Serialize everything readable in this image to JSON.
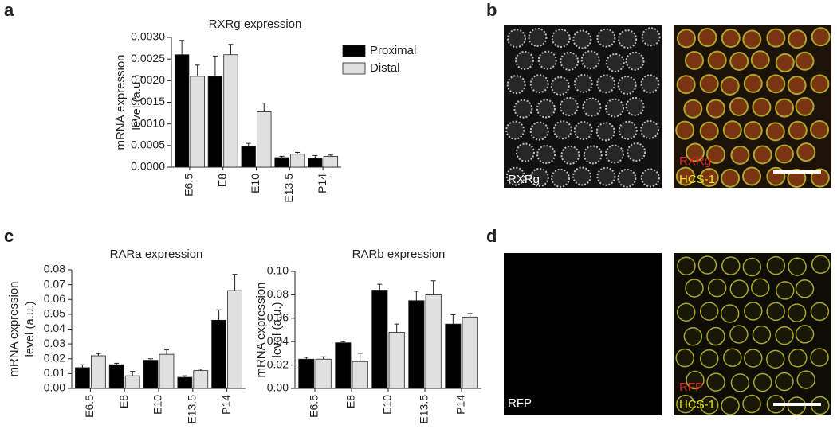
{
  "chart_data": [
    {
      "type": "bar",
      "title": "RXRg expression",
      "ylabel": [
        "mRNA expression",
        "level (a.u.)"
      ],
      "categories": [
        "E6.5",
        "E8",
        "E10",
        "E13.5",
        "P14"
      ],
      "series": [
        {
          "name": "Proximal",
          "color": "#000000",
          "values": [
            0.0026,
            0.0021,
            0.00048,
            0.00022,
            0.0002
          ],
          "errors": [
            0.00033,
            0.00047,
            7e-05,
            3e-05,
            7e-05
          ]
        },
        {
          "name": "Distal",
          "color": "#e0e0e0",
          "values": [
            0.0021,
            0.0026,
            0.00128,
            0.0003,
            0.00025
          ],
          "errors": [
            0.00026,
            0.00024,
            0.0002,
            4e-05,
            3e-05
          ]
        }
      ],
      "ylim": [
        0,
        0.003
      ],
      "yticks": [
        {
          "value": 0,
          "label": "0.0000"
        },
        {
          "value": 0.0005,
          "label": "0.0005"
        },
        {
          "value": 0.001,
          "label": "0.0010"
        },
        {
          "value": 0.0015,
          "label": "0.0015"
        },
        {
          "value": 0.002,
          "label": "0.0020"
        },
        {
          "value": 0.0025,
          "label": "0.0025"
        },
        {
          "value": 0.003,
          "label": "0.0030"
        }
      ],
      "legend": "upper right"
    },
    {
      "type": "bar",
      "title": "RARa expression",
      "ylabel": [
        "mRNA expression",
        "level (a.u.)"
      ],
      "categories": [
        "E6.5",
        "E8",
        "E10",
        "E13.5",
        "P14"
      ],
      "series": [
        {
          "name": "Proximal",
          "color": "#000000",
          "values": [
            0.014,
            0.016,
            0.019,
            0.0075,
            0.046
          ],
          "errors": [
            0.002,
            0.001,
            0.001,
            0.001,
            0.007
          ]
        },
        {
          "name": "Distal",
          "color": "#e0e0e0",
          "values": [
            0.022,
            0.0085,
            0.023,
            0.012,
            0.066
          ],
          "errors": [
            0.0015,
            0.003,
            0.003,
            0.001,
            0.011
          ]
        }
      ],
      "ylim": [
        0,
        0.08
      ],
      "yticks": [
        {
          "value": 0,
          "label": "0.00"
        },
        {
          "value": 0.01,
          "label": "0.01"
        },
        {
          "value": 0.02,
          "label": "0.02"
        },
        {
          "value": 0.03,
          "label": "0.03"
        },
        {
          "value": 0.04,
          "label": "0.04"
        },
        {
          "value": 0.05,
          "label": "0.05"
        },
        {
          "value": 0.06,
          "label": "0.06"
        },
        {
          "value": 0.07,
          "label": "0.07"
        },
        {
          "value": 0.08,
          "label": "0.08"
        }
      ]
    },
    {
      "type": "bar",
      "title": "RARb expression",
      "ylabel": [
        "mRNA expression",
        "level (a.u.)"
      ],
      "categories": [
        "E6.5",
        "E8",
        "E10",
        "E13.5",
        "P14"
      ],
      "series": [
        {
          "name": "Proximal",
          "color": "#000000",
          "values": [
            0.025,
            0.039,
            0.084,
            0.075,
            0.055
          ],
          "errors": [
            0.0015,
            0.001,
            0.005,
            0.008,
            0.008
          ]
        },
        {
          "name": "Distal",
          "color": "#e0e0e0",
          "values": [
            0.025,
            0.023,
            0.048,
            0.08,
            0.061
          ],
          "errors": [
            0.002,
            0.007,
            0.007,
            0.012,
            0.003
          ]
        }
      ],
      "ylim": [
        0,
        0.1
      ],
      "yticks": [
        {
          "value": 0,
          "label": "0.00"
        },
        {
          "value": 0.02,
          "label": "0.02"
        },
        {
          "value": 0.04,
          "label": "0.04"
        },
        {
          "value": 0.06,
          "label": "0.06"
        },
        {
          "value": 0.08,
          "label": "0.08"
        },
        {
          "value": 0.1,
          "label": "0.10"
        }
      ]
    }
  ],
  "panel_labels": [
    "a",
    "b",
    "c",
    "d"
  ],
  "images": {
    "b": {
      "left_label": "RXRg",
      "right_labels": [
        "RXRg",
        "HCS-1"
      ]
    },
    "d": {
      "left_label": "RFP",
      "right_labels": [
        "RFP",
        "HCS-1"
      ]
    }
  }
}
